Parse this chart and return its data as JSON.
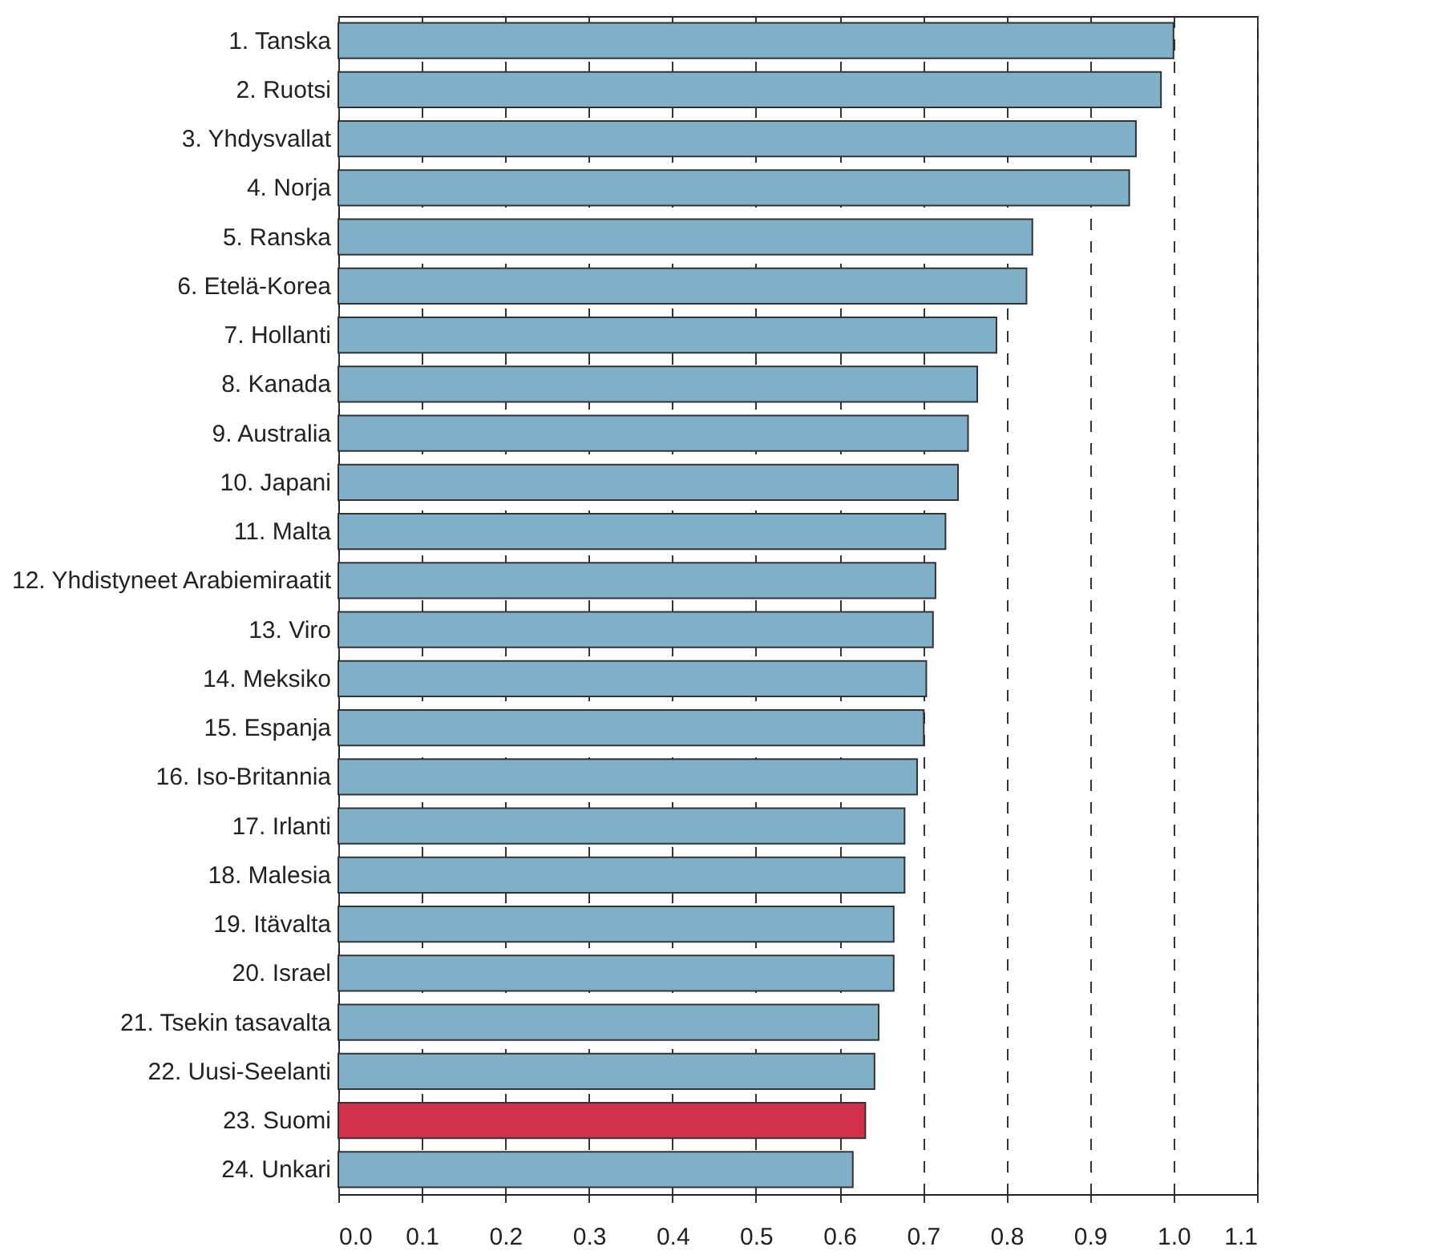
{
  "chart_data": {
    "type": "bar",
    "orientation": "horizontal",
    "categories": [
      "1. Tanska",
      "2. Ruotsi",
      "3. Yhdysvallat",
      "4. Norja",
      "5. Ranska",
      "6. Etelä-Korea",
      "7. Hollanti",
      "8. Kanada",
      "9. Australia",
      "10. Japani",
      "11. Malta",
      "12. Yhdistyneet Arabiemiraatit",
      "13. Viro",
      "14. Meksiko",
      "15. Espanja",
      "16. Iso-Britannia",
      "17. Irlanti",
      "18. Malesia",
      "19. Itävalta",
      "20. Israel",
      "21. Tsekin tasavalta",
      "22. Uusi-Seelanti",
      "23. Suomi",
      "24. Unkari"
    ],
    "values": [
      1.0,
      0.985,
      0.955,
      0.947,
      0.831,
      0.824,
      0.788,
      0.765,
      0.754,
      0.742,
      0.727,
      0.715,
      0.712,
      0.704,
      0.701,
      0.693,
      0.678,
      0.678,
      0.665,
      0.665,
      0.647,
      0.642,
      0.631,
      0.616
    ],
    "colors": [
      "#7fb0c8",
      "#7fb0c8",
      "#7fb0c8",
      "#7fb0c8",
      "#7fb0c8",
      "#7fb0c8",
      "#7fb0c8",
      "#7fb0c8",
      "#7fb0c8",
      "#7fb0c8",
      "#7fb0c8",
      "#7fb0c8",
      "#7fb0c8",
      "#7fb0c8",
      "#7fb0c8",
      "#7fb0c8",
      "#7fb0c8",
      "#7fb0c8",
      "#7fb0c8",
      "#7fb0c8",
      "#7fb0c8",
      "#7fb0c8",
      "#d0304a",
      "#7fb0c8"
    ],
    "xlim": [
      0,
      1.1
    ],
    "xticks": [
      {
        "value": 0,
        "label": "0.0"
      },
      {
        "value": 0.1,
        "label": "0.1"
      },
      {
        "value": 0.2,
        "label": "0.2"
      },
      {
        "value": 0.3,
        "label": "0.3"
      },
      {
        "value": 0.4,
        "label": "0.4"
      },
      {
        "value": 0.5,
        "label": "0.5"
      },
      {
        "value": 0.6,
        "label": "0.6"
      },
      {
        "value": 0.7,
        "label": "0.7"
      },
      {
        "value": 0.8,
        "label": "0.8"
      },
      {
        "value": 0.9,
        "label": "0.9"
      },
      {
        "value": 1.0,
        "label": "1.0"
      },
      {
        "value": 1.1,
        "label": "1.1"
      }
    ],
    "grid": "x"
  }
}
